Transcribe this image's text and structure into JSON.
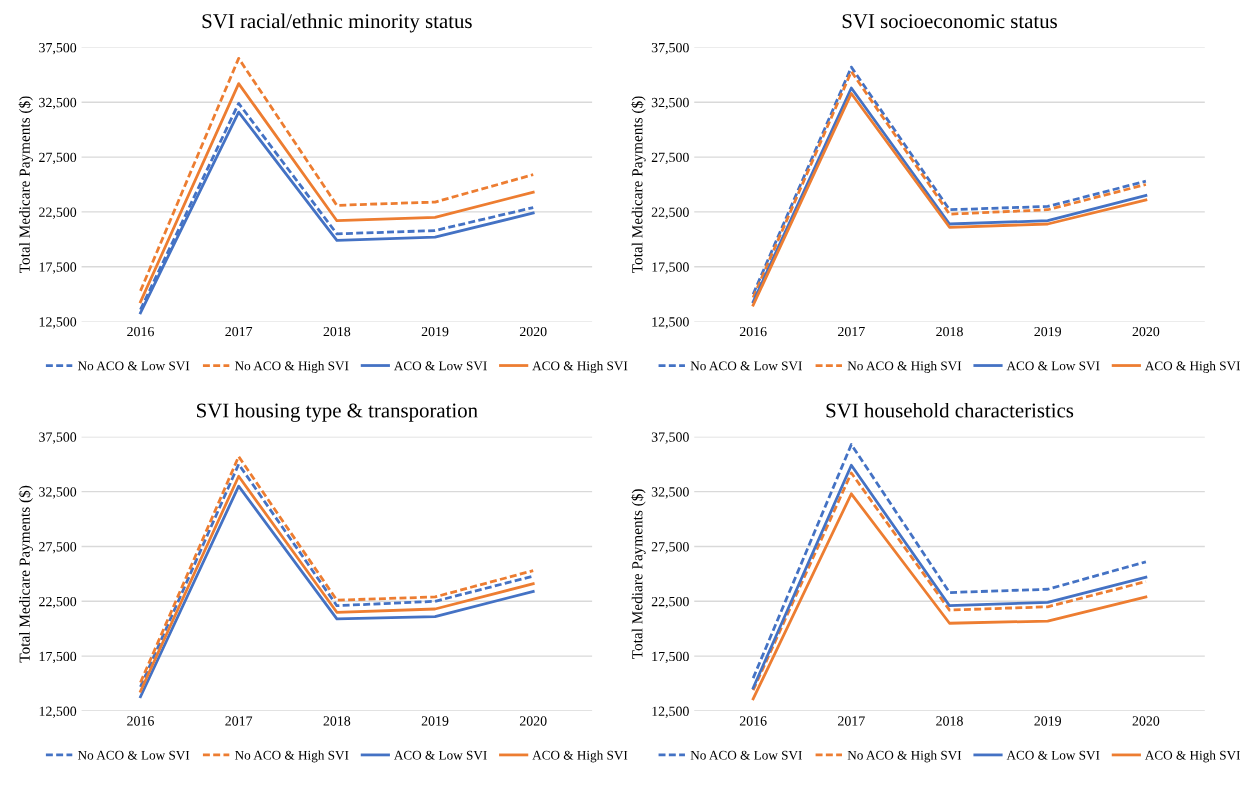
{
  "chart_data": [
    {
      "type": "line",
      "title": "SVI racial/ethnic minority status",
      "ylabel": "Total Medicare Payments ($)",
      "categories": [
        "2016",
        "2017",
        "2018",
        "2019",
        "2020"
      ],
      "ylim": [
        12500,
        37500
      ],
      "yticks": [
        {
          "value": 12500,
          "label": "12,500"
        },
        {
          "value": 17500,
          "label": "17,500"
        },
        {
          "value": 22500,
          "label": "22,500"
        },
        {
          "value": 27500,
          "label": "27,500"
        },
        {
          "value": 32500,
          "label": "32,500"
        },
        {
          "value": 37500,
          "label": "37,500"
        }
      ],
      "grid": "y",
      "legend": "bottom",
      "marker": "none",
      "series": [
        {
          "name": "No ACO & Low SVI",
          "color": "#4472c4",
          "line_style": "dashed",
          "values": [
            13600,
            32400,
            20500,
            20800,
            22900
          ]
        },
        {
          "name": "No ACO & High SVI",
          "color": "#ed7d31",
          "line_style": "dashed",
          "values": [
            15300,
            36500,
            23100,
            23400,
            25900
          ]
        },
        {
          "name": "ACO & Low SVI",
          "color": "#4472c4",
          "line_style": "solid",
          "values": [
            13300,
            31600,
            19900,
            20200,
            22400
          ]
        },
        {
          "name": "ACO & High SVI",
          "color": "#ed7d31",
          "line_style": "solid",
          "values": [
            14300,
            34200,
            21700,
            22000,
            24300
          ]
        }
      ]
    },
    {
      "type": "line",
      "title": "SVI socioeconomic status",
      "ylabel": "Total Medicare Payments ($)",
      "categories": [
        "2016",
        "2017",
        "2018",
        "2019",
        "2020"
      ],
      "ylim": [
        12500,
        37500
      ],
      "yticks": [
        {
          "value": 12500,
          "label": "12,500"
        },
        {
          "value": 17500,
          "label": "17,500"
        },
        {
          "value": 22500,
          "label": "22,500"
        },
        {
          "value": 27500,
          "label": "27,500"
        },
        {
          "value": 32500,
          "label": "32,500"
        },
        {
          "value": 37500,
          "label": "37,500"
        }
      ],
      "grid": "y",
      "legend": "bottom",
      "marker": "none",
      "series": [
        {
          "name": "No ACO & Low SVI",
          "color": "#4472c4",
          "line_style": "dashed",
          "values": [
            15000,
            35700,
            22700,
            23000,
            25300
          ]
        },
        {
          "name": "No ACO & High SVI",
          "color": "#ed7d31",
          "line_style": "dashed",
          "values": [
            14700,
            35300,
            22300,
            22700,
            25000
          ]
        },
        {
          "name": "ACO & Low SVI",
          "color": "#4472c4",
          "line_style": "solid",
          "values": [
            14300,
            33800,
            21400,
            21700,
            24000
          ]
        },
        {
          "name": "ACO & High SVI",
          "color": "#ed7d31",
          "line_style": "solid",
          "values": [
            14000,
            33300,
            21100,
            21400,
            23600
          ]
        }
      ]
    },
    {
      "type": "line",
      "title": "SVI housing type & transporation",
      "ylabel": "Total Medicare Payments ($)",
      "categories": [
        "2016",
        "2017",
        "2018",
        "2019",
        "2020"
      ],
      "ylim": [
        12500,
        37500
      ],
      "yticks": [
        {
          "value": 12500,
          "label": "12,500"
        },
        {
          "value": 17500,
          "label": "17,500"
        },
        {
          "value": 22500,
          "label": "22,500"
        },
        {
          "value": 27500,
          "label": "27,500"
        },
        {
          "value": 32500,
          "label": "32,500"
        },
        {
          "value": 37500,
          "label": "37,500"
        }
      ],
      "grid": "y",
      "legend": "bottom",
      "marker": "none",
      "series": [
        {
          "name": "No ACO & Low SVI",
          "color": "#4472c4",
          "line_style": "dashed",
          "values": [
            14700,
            35000,
            22100,
            22500,
            24800
          ]
        },
        {
          "name": "No ACO & High SVI",
          "color": "#ed7d31",
          "line_style": "dashed",
          "values": [
            15100,
            35700,
            22600,
            22900,
            25300
          ]
        },
        {
          "name": "ACO & Low SVI",
          "color": "#4472c4",
          "line_style": "solid",
          "values": [
            13800,
            33000,
            20900,
            21100,
            23400
          ]
        },
        {
          "name": "ACO & High SVI",
          "color": "#ed7d31",
          "line_style": "solid",
          "values": [
            14300,
            33900,
            21500,
            21800,
            24100
          ]
        }
      ]
    },
    {
      "type": "line",
      "title": "SVI household characteristics",
      "ylabel": "Total Mediare Payments ($)",
      "categories": [
        "2016",
        "2017",
        "2018",
        "2019",
        "2020"
      ],
      "ylim": [
        12500,
        37500
      ],
      "yticks": [
        {
          "value": 12500,
          "label": "12,500"
        },
        {
          "value": 17500,
          "label": "17,500"
        },
        {
          "value": 22500,
          "label": "22,500"
        },
        {
          "value": 27500,
          "label": "27,500"
        },
        {
          "value": 32500,
          "label": "32,500"
        },
        {
          "value": 37500,
          "label": "37,500"
        }
      ],
      "grid": "y",
      "legend": "bottom",
      "marker": "none",
      "series": [
        {
          "name": "No ACO & Low SVI",
          "color": "#4472c4",
          "line_style": "dashed",
          "values": [
            15500,
            36800,
            23300,
            23600,
            26100
          ]
        },
        {
          "name": "No ACO & High SVI",
          "color": "#ed7d31",
          "line_style": "dashed",
          "values": [
            14400,
            34200,
            21700,
            22000,
            24300
          ]
        },
        {
          "name": "ACO & Low SVI",
          "color": "#4472c4",
          "line_style": "solid",
          "values": [
            14600,
            34900,
            22100,
            22400,
            24700
          ]
        },
        {
          "name": "ACO & High SVI",
          "color": "#ed7d31",
          "line_style": "solid",
          "values": [
            13600,
            32300,
            20500,
            20700,
            22900
          ]
        }
      ]
    }
  ]
}
